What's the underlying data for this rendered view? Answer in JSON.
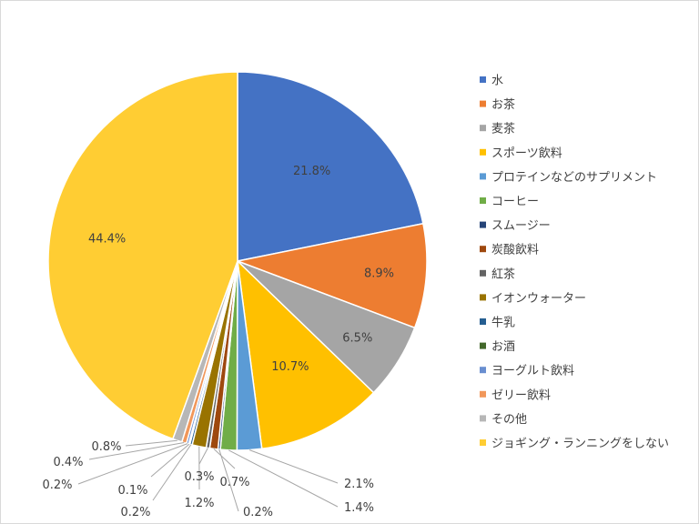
{
  "chart_data": {
    "type": "pie",
    "title": "",
    "legend_position": "right",
    "start_angle_deg": 0,
    "direction": "clockwise",
    "slices": [
      {
        "name": "水",
        "value": 21.8,
        "label": "21.8%",
        "color": "#4472C4"
      },
      {
        "name": "お茶",
        "value": 8.9,
        "label": "8.9%",
        "color": "#ED7D31"
      },
      {
        "name": "麦茶",
        "value": 6.5,
        "label": "6.5%",
        "color": "#A5A5A5"
      },
      {
        "name": "スポーツ飲料",
        "value": 10.7,
        "label": "10.7%",
        "color": "#FFC000"
      },
      {
        "name": "プロテインなどのサプリメント",
        "value": 2.1,
        "label": "2.1%",
        "color": "#5B9BD5"
      },
      {
        "name": "コーヒー",
        "value": 1.4,
        "label": "1.4%",
        "color": "#70AD47"
      },
      {
        "name": "スムージー",
        "value": 0.2,
        "label": "0.2%",
        "color": "#264478"
      },
      {
        "name": "炭酸飲料",
        "value": 0.7,
        "label": "0.7%",
        "color": "#9E480E"
      },
      {
        "name": "紅茶",
        "value": 0.3,
        "label": "0.3%",
        "color": "#636363"
      },
      {
        "name": "イオンウォーター",
        "value": 1.2,
        "label": "1.2%",
        "color": "#997300"
      },
      {
        "name": "牛乳",
        "value": 0.2,
        "label": "0.2%",
        "color": "#255E91"
      },
      {
        "name": "お酒",
        "value": 0.1,
        "label": "0.1%",
        "color": "#43682B"
      },
      {
        "name": "ヨーグルト飲料",
        "value": 0.2,
        "label": "0.2%",
        "color": "#698ED0"
      },
      {
        "name": "ゼリー飲料",
        "value": 0.4,
        "label": "0.4%",
        "color": "#F1975A"
      },
      {
        "name": "その他",
        "value": 0.8,
        "label": "0.8%",
        "color": "#B7B7B7"
      },
      {
        "name": "ジョギング・ランニングをしない",
        "value": 44.4,
        "label": "44.4%",
        "color": "#FFCD33"
      }
    ]
  }
}
